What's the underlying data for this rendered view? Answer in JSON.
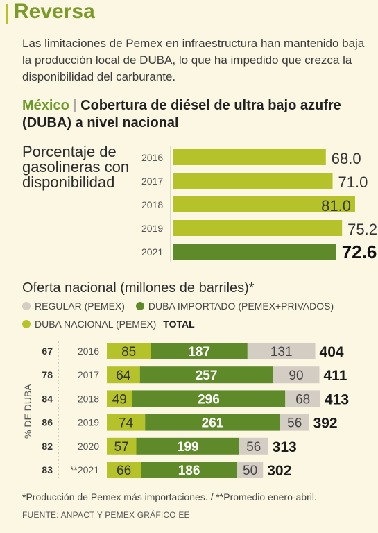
{
  "brand": "Reversa",
  "intro": "Las limitaciones de Pemex en infraestructura han mantenido baja la producción local de DUBA, lo que ha impedido que crezca la disponibilidad del carburante.",
  "headline": {
    "country": "México",
    "sep": "|",
    "text": "Cobertura de diésel de ultra bajo azufre (DUBA) a nivel nacional"
  },
  "notes": "*Producción de Pemex más importaciones.   / **Promedio enero-abril.",
  "source": "FUENTE: ANPACT Y PEMEX GRÁFICO EE",
  "colors": {
    "light": "#b5c22a",
    "dark": "#5f8a2a",
    "regular": "#d4cdc4",
    "text": "#2b2b2b",
    "brand": "#7c9a2a"
  },
  "chart_data": [
    {
      "type": "bar",
      "orientation": "horizontal",
      "title": "Porcentaje de gasolineras con disponibilidad",
      "categories": [
        "2016",
        "2017",
        "2018",
        "2019",
        "2021"
      ],
      "values": [
        68.0,
        71.0,
        81.0,
        75.2,
        72.6
      ],
      "value_labels": [
        "68.0",
        "71.0",
        "81.0",
        "75.2",
        "72.6"
      ],
      "xlim": [
        0,
        81
      ],
      "grid": false,
      "highlight_index": 4
    },
    {
      "type": "bar",
      "orientation": "horizontal",
      "stacked": true,
      "title": "Oferta nacional (millones de barriles)*",
      "categories": [
        "2016",
        "2017",
        "2018",
        "2019",
        "2020",
        "**2021"
      ],
      "series": [
        {
          "name": "DUBA NACIONAL (PEMEX)",
          "values": [
            85,
            64,
            49,
            74,
            57,
            66
          ]
        },
        {
          "name": "DUBA IMPORTADO (PEMEX+PRIVADOS)",
          "values": [
            187,
            257,
            296,
            261,
            199,
            186
          ]
        },
        {
          "name": "REGULAR (PEMEX)",
          "values": [
            131,
            90,
            68,
            56,
            56,
            50
          ]
        }
      ],
      "totals": [
        404,
        411,
        413,
        392,
        313,
        302
      ],
      "total_label": "TOTAL",
      "pct_duba": [
        67,
        78,
        84,
        86,
        82,
        83
      ],
      "pct_axis_label": "% DE DUBA",
      "legend": [
        "REGULAR (PEMEX)",
        "DUBA IMPORTADO (PEMEX+PRIVADOS)",
        "DUBA NACIONAL (PEMEX)"
      ],
      "legend_position": "top-left",
      "xlim": [
        0,
        413
      ]
    }
  ]
}
